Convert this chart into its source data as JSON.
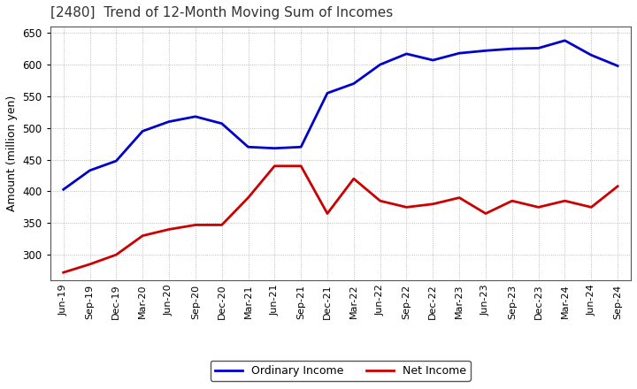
{
  "title": "[2480]  Trend of 12-Month Moving Sum of Incomes",
  "ylabel": "Amount (million yen)",
  "ylim": [
    260,
    660
  ],
  "yticks": [
    300,
    350,
    400,
    450,
    500,
    550,
    600,
    650
  ],
  "background_color": "#ffffff",
  "plot_bg_color": "#ffffff",
  "grid_color": "#aaaaaa",
  "x_labels": [
    "Jun-19",
    "Sep-19",
    "Dec-19",
    "Mar-20",
    "Jun-20",
    "Sep-20",
    "Dec-20",
    "Mar-21",
    "Jun-21",
    "Sep-21",
    "Dec-21",
    "Mar-22",
    "Jun-22",
    "Sep-22",
    "Dec-22",
    "Mar-23",
    "Jun-23",
    "Sep-23",
    "Dec-23",
    "Mar-24",
    "Jun-24",
    "Sep-24"
  ],
  "ordinary_income": [
    403,
    433,
    448,
    495,
    510,
    518,
    507,
    470,
    468,
    470,
    555,
    570,
    600,
    617,
    607,
    618,
    622,
    625,
    626,
    638,
    615,
    598
  ],
  "net_income": [
    272,
    285,
    300,
    330,
    340,
    347,
    347,
    390,
    440,
    440,
    365,
    420,
    385,
    375,
    380,
    390,
    365,
    385,
    375,
    385,
    375,
    408
  ],
  "ordinary_color": "#0000cc",
  "net_color": "#cc0000",
  "line_width": 2.0,
  "legend_labels": [
    "Ordinary Income",
    "Net Income"
  ]
}
